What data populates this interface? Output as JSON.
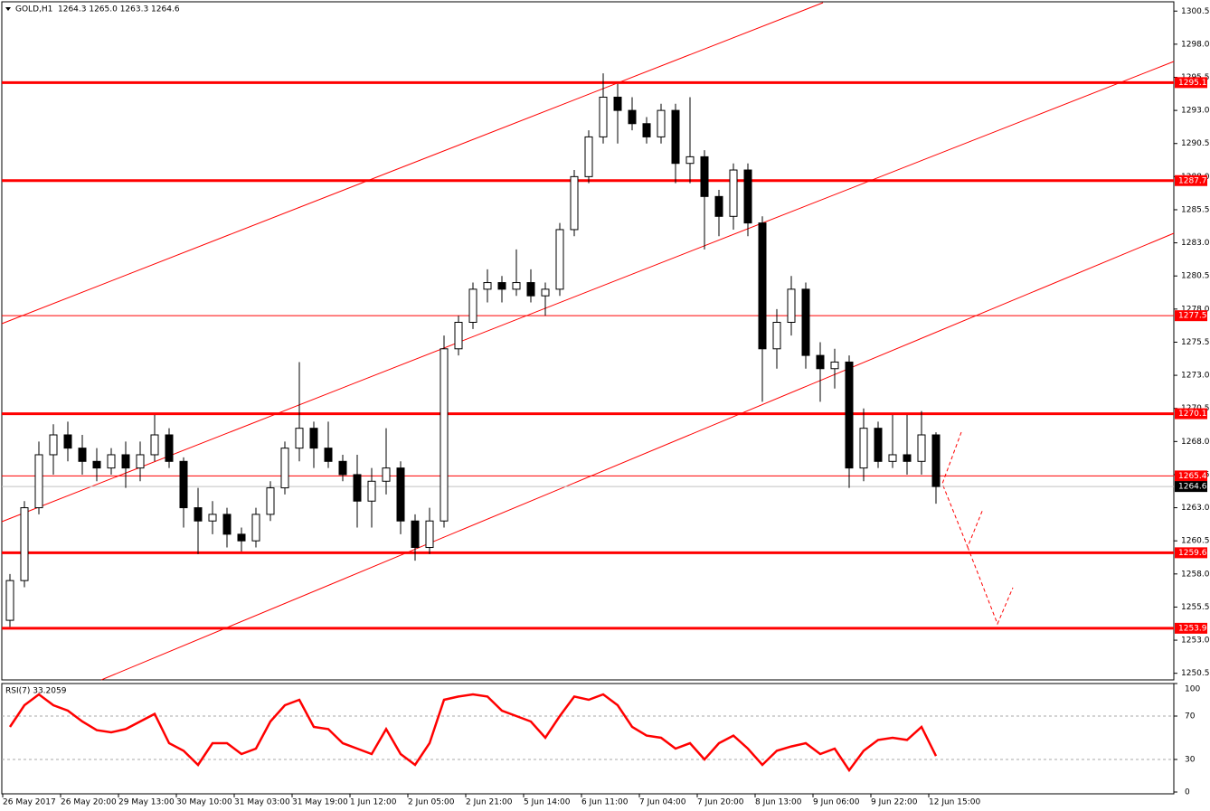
{
  "chart_data": {
    "type": "candlestick",
    "symbol": "GOLD,H1",
    "ohlc_text": "1264.3 1265.0 1263.3 1264.6",
    "categories": [
      "26 May 2017",
      null,
      null,
      null,
      "26 May 20:00",
      null,
      null,
      null,
      "29 May 13:00",
      null,
      null,
      null,
      "30 May 10:00",
      null,
      null,
      null,
      "31 May 03:00",
      null,
      null,
      null,
      "31 May 19:00",
      null,
      null,
      null,
      "1 Jun 12:00",
      null,
      null,
      null,
      "2 Jun 05:00",
      null,
      null,
      null,
      "2 Jun 21:00",
      null,
      null,
      null,
      "5 Jun 14:00",
      null,
      null,
      null,
      "6 Jun 11:00",
      null,
      null,
      null,
      "7 Jun 04:00",
      null,
      null,
      null,
      "7 Jun 20:00",
      null,
      null,
      null,
      "8 Jun 13:00",
      null,
      null,
      null,
      "9 Jun 06:00",
      null,
      null,
      null,
      "9 Jun 22:00",
      null,
      null,
      null,
      "12 Jun 15:00"
    ],
    "open": [
      1254.5,
      1257.5,
      1263,
      1267,
      1268.5,
      1267.5,
      1266.5,
      1266,
      1267,
      1266,
      1267,
      1268.5,
      1266.5,
      1263,
      1262,
      1262.5,
      1261,
      1260.5,
      1262.5,
      1264.5,
      1267.5,
      1269,
      1267.5,
      1266.5,
      1265.5,
      1263.5,
      1265,
      1266,
      1262,
      1260,
      1262,
      1275,
      1277,
      1279.5,
      1280,
      1279.5,
      1280,
      1279,
      1279.5,
      1284,
      1288,
      1291,
      1294,
      1293,
      1292,
      1291,
      1293,
      1289,
      1289.5,
      1286.5,
      1285,
      1288.5,
      1284.5,
      1275,
      1277,
      1279.5,
      1274.5,
      1273.5,
      1274,
      1266,
      1269,
      1266.5,
      1267,
      1266.5,
      1268.5
    ],
    "high": [
      1258,
      1263.5,
      1268,
      1269.3,
      1269.5,
      1268.5,
      1267.5,
      1267.5,
      1268,
      1268,
      1270,
      1269,
      1266.8,
      1264.5,
      1263.5,
      1263,
      1261.5,
      1263,
      1265,
      1268,
      1274,
      1269.5,
      1269.5,
      1267,
      1267,
      1266,
      1269,
      1266.5,
      1262.5,
      1263,
      1276,
      1277.5,
      1280,
      1281,
      1280.5,
      1282.5,
      1281,
      1280,
      1284.5,
      1288.5,
      1291.5,
      1295.8,
      1295,
      1294,
      1292.5,
      1293.5,
      1293.5,
      1294,
      1290,
      1287,
      1289,
      1289,
      1285,
      1278,
      1280.5,
      1280,
      1275.5,
      1275,
      1274.5,
      1270.5,
      1269.5,
      1270,
      1270,
      1270.3,
      1268.7
    ],
    "low": [
      1254,
      1257,
      1262.5,
      1265.5,
      1266.5,
      1265.5,
      1265,
      1265.5,
      1264.5,
      1265,
      1266.5,
      1266,
      1261.5,
      1259.5,
      1261,
      1260,
      1259.7,
      1260,
      1262,
      1264,
      1266.5,
      1266,
      1266,
      1265,
      1261.5,
      1261.5,
      1264,
      1261,
      1259,
      1259.5,
      1261.5,
      1274.5,
      1276.5,
      1278.5,
      1278.5,
      1279,
      1278.5,
      1277.5,
      1279,
      1283.5,
      1287.5,
      1290.5,
      1290.5,
      1291.5,
      1290.5,
      1290.5,
      1287.5,
      1287.5,
      1282.5,
      1283.5,
      1284,
      1283.5,
      1271,
      1273.5,
      1276,
      1273.5,
      1271,
      1272,
      1264.5,
      1265,
      1266,
      1266,
      1265.5,
      1265.5,
      1263.3
    ],
    "close": [
      1257.5,
      1263,
      1267,
      1268.5,
      1267.5,
      1266.5,
      1266,
      1267,
      1266,
      1267,
      1268.5,
      1266.5,
      1263,
      1262,
      1262.5,
      1261,
      1260.5,
      1262.5,
      1264.5,
      1267.5,
      1269,
      1267.5,
      1266.5,
      1265.5,
      1263.5,
      1265,
      1266,
      1262,
      1260,
      1262,
      1275,
      1277,
      1279.5,
      1280,
      1279.5,
      1280,
      1279,
      1279.5,
      1284,
      1288,
      1291,
      1294,
      1293,
      1292,
      1291,
      1293,
      1289,
      1289.5,
      1286.5,
      1285,
      1288.5,
      1284.5,
      1275,
      1277,
      1279.5,
      1274.5,
      1273.5,
      1274,
      1266,
      1269,
      1266.5,
      1267,
      1266.5,
      1268.5,
      1264.6
    ],
    "ylim": [
      1250.0,
      1301.2
    ],
    "yticks": [
      1300.5,
      {
        "value": 1298,
        "label": "1298.0"
      },
      1295.5,
      {
        "value": 1293,
        "label": "1293.0"
      },
      1290.5,
      {
        "value": 1288,
        "label": "1288.0"
      },
      1285.5,
      {
        "value": 1283,
        "label": "1283.0"
      },
      1280.5,
      {
        "value": 1278,
        "label": "1278.0"
      },
      1275.5,
      {
        "value": 1273,
        "label": "1273.0"
      },
      1270.5,
      {
        "value": 1268,
        "label": "1268.0"
      },
      1265.5,
      {
        "value": 1263,
        "label": "1263.0"
      },
      1260.5,
      {
        "value": 1258,
        "label": "1258.0"
      },
      1255.5,
      {
        "value": 1253,
        "label": "1253.0"
      },
      1250.5
    ],
    "levels": [
      {
        "value": 1295.1,
        "style": "thick"
      },
      {
        "value": 1287.7,
        "style": "thick"
      },
      {
        "value": 1277.5,
        "style": "thin"
      },
      {
        "value": 1270.1,
        "style": "thick"
      },
      {
        "value": 1265.4,
        "style": "thin"
      },
      {
        "value": 1259.6,
        "style": "thick"
      },
      {
        "value": 1253.9,
        "style": "thick"
      },
      {
        "value": 1264.6,
        "style": "current"
      }
    ],
    "level_color": "#ff0000",
    "indicator": {
      "title": "RSI(7) 33.2059",
      "color": "#ff0000",
      "ylim": [
        0,
        100
      ],
      "yticks": [
        100,
        70,
        30,
        0
      ],
      "guides": [
        70,
        30
      ],
      "values": [
        60,
        80,
        90,
        80,
        75,
        65,
        57,
        55,
        58,
        65,
        72,
        45,
        38,
        25,
        45,
        45,
        35,
        40,
        65,
        80,
        85,
        60,
        58,
        45,
        40,
        35,
        58,
        35,
        25,
        45,
        85,
        88,
        90,
        88,
        75,
        70,
        65,
        50,
        70,
        88,
        85,
        90,
        80,
        60,
        52,
        50,
        40,
        45,
        30,
        45,
        52,
        40,
        25,
        38,
        42,
        45,
        35,
        40,
        20,
        38,
        48,
        50,
        48,
        60,
        33.2059
      ]
    }
  }
}
